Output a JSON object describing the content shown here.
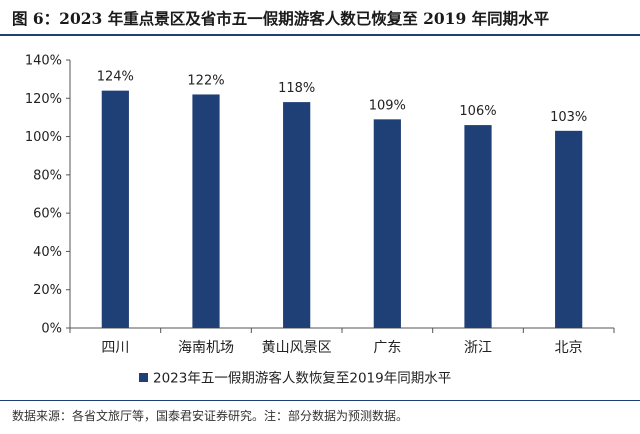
{
  "figure": {
    "title": "图 6：2023 年重点景区及省市五一假期游客人数已恢复至 2019 年同期水平",
    "source": "数据来源：各省文旅厅等，国泰君安证券研究。注：部分数据为预测数据。"
  },
  "chart_data": {
    "type": "bar",
    "categories": [
      "四川",
      "海南机场",
      "黄山风景区",
      "广东",
      "浙江",
      "北京"
    ],
    "series": [
      {
        "name": "2023年五一假期游客人数恢复至2019年同期水平",
        "values": [
          124,
          122,
          118,
          109,
          106,
          103
        ],
        "data_labels": [
          "124%",
          "122%",
          "118%",
          "109%",
          "106%",
          "103%"
        ],
        "color": "#1f3f77"
      }
    ],
    "ylim": [
      0,
      140
    ],
    "yticks": [
      "0%",
      "20%",
      "40%",
      "60%",
      "80%",
      "100%",
      "120%",
      "140%"
    ],
    "grid": false,
    "legend": "bottom",
    "title": "",
    "xlabel": "",
    "ylabel": ""
  }
}
